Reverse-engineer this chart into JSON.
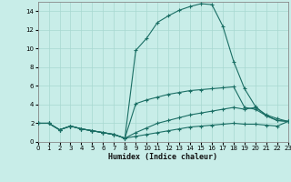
{
  "xlabel": "Humidex (Indice chaleur)",
  "xlim": [
    0,
    23
  ],
  "ylim": [
    0,
    15
  ],
  "xticks": [
    0,
    1,
    2,
    3,
    4,
    5,
    6,
    7,
    8,
    9,
    10,
    11,
    12,
    13,
    14,
    15,
    16,
    17,
    18,
    19,
    20,
    21,
    22,
    23
  ],
  "yticks": [
    0,
    2,
    4,
    6,
    8,
    10,
    12,
    14
  ],
  "background_color": "#c8ede8",
  "grid_color": "#a8d8d0",
  "line_color": "#1a6e64",
  "lines": [
    {
      "x": [
        0,
        1,
        2,
        3,
        4,
        5,
        6,
        7,
        8,
        9,
        10,
        11,
        12,
        13,
        14,
        15,
        16,
        17,
        18,
        19,
        20,
        21,
        22,
        23
      ],
      "y": [
        2.0,
        2.0,
        1.3,
        1.7,
        1.4,
        1.2,
        1.0,
        0.8,
        0.4,
        9.8,
        11.1,
        12.8,
        13.5,
        14.1,
        14.5,
        14.8,
        14.7,
        12.4,
        8.6,
        5.7,
        3.8,
        2.8,
        2.3,
        2.2
      ]
    },
    {
      "x": [
        0,
        1,
        2,
        3,
        4,
        5,
        6,
        7,
        8,
        9,
        10,
        11,
        12,
        13,
        14,
        15,
        16,
        17,
        18,
        19,
        20,
        21,
        22,
        23
      ],
      "y": [
        2.0,
        2.0,
        1.3,
        1.7,
        1.4,
        1.2,
        1.0,
        0.8,
        0.4,
        4.1,
        4.5,
        4.8,
        5.1,
        5.3,
        5.5,
        5.6,
        5.7,
        5.8,
        5.9,
        3.7,
        3.5,
        2.8,
        2.3,
        2.2
      ]
    },
    {
      "x": [
        0,
        1,
        2,
        3,
        4,
        5,
        6,
        7,
        8,
        9,
        10,
        11,
        12,
        13,
        14,
        15,
        16,
        17,
        18,
        19,
        20,
        21,
        22,
        23
      ],
      "y": [
        2.0,
        2.0,
        1.3,
        1.7,
        1.4,
        1.2,
        1.0,
        0.8,
        0.4,
        1.0,
        1.5,
        2.0,
        2.3,
        2.6,
        2.9,
        3.1,
        3.3,
        3.5,
        3.7,
        3.5,
        3.7,
        2.9,
        2.5,
        2.2
      ]
    },
    {
      "x": [
        0,
        1,
        2,
        3,
        4,
        5,
        6,
        7,
        8,
        9,
        10,
        11,
        12,
        13,
        14,
        15,
        16,
        17,
        18,
        19,
        20,
        21,
        22,
        23
      ],
      "y": [
        2.0,
        2.0,
        1.3,
        1.7,
        1.4,
        1.2,
        1.0,
        0.8,
        0.4,
        0.6,
        0.8,
        1.0,
        1.2,
        1.4,
        1.6,
        1.7,
        1.8,
        1.9,
        2.0,
        1.9,
        1.9,
        1.8,
        1.7,
        2.2
      ]
    }
  ]
}
